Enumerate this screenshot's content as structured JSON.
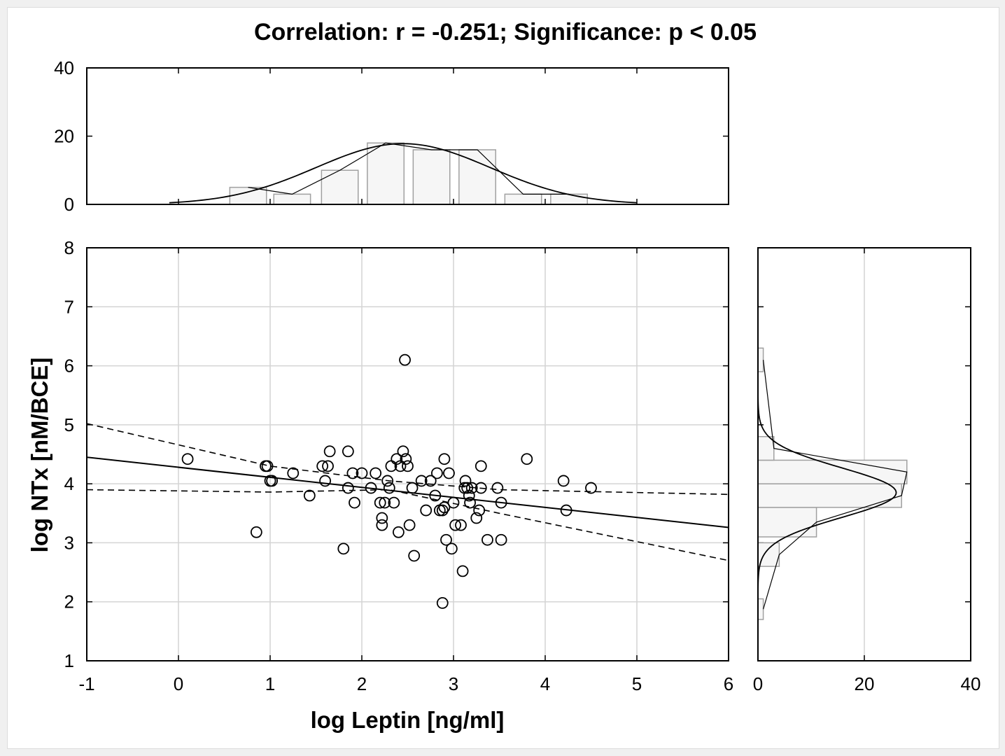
{
  "chart_data": {
    "type": "scatter",
    "title": "Correlation: r = -0.251; Significance: p < 0.05",
    "xlabel": "log Leptin [ng/ml]",
    "ylabel": "log NTx [nM/BCE]",
    "xlim": [
      -1,
      6
    ],
    "ylim": [
      1,
      8
    ],
    "x_ticks": [
      "-1",
      "0",
      "1",
      "2",
      "3",
      "4",
      "5",
      "6"
    ],
    "y_ticks": [
      "1",
      "2",
      "3",
      "4",
      "5",
      "6",
      "7",
      "8"
    ],
    "grid": true,
    "regression": {
      "intercept": 4.28,
      "slope": -0.17,
      "ci_upper": [
        [
          -1,
          5.02
        ],
        [
          1,
          4.3
        ],
        [
          2.3,
          4.05
        ],
        [
          3.5,
          3.9
        ],
        [
          6,
          3.82
        ]
      ],
      "ci_lower": [
        [
          -1,
          3.9
        ],
        [
          1,
          3.86
        ],
        [
          2.3,
          3.9
        ],
        [
          3.5,
          3.5
        ],
        [
          6,
          2.7
        ]
      ]
    },
    "points": [
      [
        0.1,
        4.42
      ],
      [
        0.85,
        3.18
      ],
      [
        0.95,
        4.3
      ],
      [
        0.97,
        4.3
      ],
      [
        1.0,
        4.05
      ],
      [
        1.02,
        4.05
      ],
      [
        1.25,
        4.18
      ],
      [
        1.43,
        3.8
      ],
      [
        1.57,
        4.3
      ],
      [
        1.6,
        4.05
      ],
      [
        1.63,
        4.3
      ],
      [
        1.65,
        4.55
      ],
      [
        1.8,
        2.9
      ],
      [
        1.85,
        3.93
      ],
      [
        1.85,
        4.55
      ],
      [
        1.9,
        4.18
      ],
      [
        1.92,
        3.68
      ],
      [
        2.0,
        4.18
      ],
      [
        2.1,
        3.93
      ],
      [
        2.15,
        4.18
      ],
      [
        2.2,
        3.68
      ],
      [
        2.22,
        3.42
      ],
      [
        2.22,
        3.3
      ],
      [
        2.25,
        3.68
      ],
      [
        2.28,
        4.05
      ],
      [
        2.3,
        3.93
      ],
      [
        2.32,
        4.3
      ],
      [
        2.35,
        3.68
      ],
      [
        2.38,
        4.42
      ],
      [
        2.4,
        3.18
      ],
      [
        2.42,
        4.3
      ],
      [
        2.45,
        4.55
      ],
      [
        2.47,
        6.1
      ],
      [
        2.48,
        4.42
      ],
      [
        2.5,
        4.3
      ],
      [
        2.52,
        3.3
      ],
      [
        2.55,
        3.93
      ],
      [
        2.57,
        2.78
      ],
      [
        2.65,
        4.05
      ],
      [
        2.7,
        3.55
      ],
      [
        2.75,
        4.05
      ],
      [
        2.8,
        3.8
      ],
      [
        2.82,
        4.18
      ],
      [
        2.85,
        3.55
      ],
      [
        2.88,
        3.55
      ],
      [
        2.88,
        1.98
      ],
      [
        2.9,
        4.42
      ],
      [
        2.9,
        3.6
      ],
      [
        2.92,
        3.05
      ],
      [
        2.95,
        4.18
      ],
      [
        2.98,
        2.9
      ],
      [
        3.0,
        3.68
      ],
      [
        3.02,
        3.3
      ],
      [
        3.08,
        3.3
      ],
      [
        3.1,
        2.52
      ],
      [
        3.12,
        3.93
      ],
      [
        3.13,
        4.05
      ],
      [
        3.15,
        3.93
      ],
      [
        3.17,
        3.8
      ],
      [
        3.18,
        3.68
      ],
      [
        3.2,
        3.93
      ],
      [
        3.25,
        3.42
      ],
      [
        3.28,
        3.55
      ],
      [
        3.3,
        3.93
      ],
      [
        3.3,
        4.3
      ],
      [
        3.37,
        3.05
      ],
      [
        3.48,
        3.93
      ],
      [
        3.52,
        3.68
      ],
      [
        3.52,
        3.05
      ],
      [
        3.8,
        4.42
      ],
      [
        4.2,
        4.05
      ],
      [
        4.23,
        3.55
      ],
      [
        4.5,
        3.93
      ]
    ],
    "top_histogram": {
      "ylim": [
        0,
        40
      ],
      "y_ticks": [
        "0",
        "20",
        "40"
      ],
      "bins": [
        {
          "x0": 0.56,
          "x1": 0.96,
          "count": 5
        },
        {
          "x0": 1.04,
          "x1": 1.44,
          "count": 3
        },
        {
          "x0": 1.56,
          "x1": 1.96,
          "count": 10
        },
        {
          "x0": 2.06,
          "x1": 2.46,
          "count": 18
        },
        {
          "x0": 2.56,
          "x1": 2.96,
          "count": 16
        },
        {
          "x0": 3.06,
          "x1": 3.46,
          "count": 16
        },
        {
          "x0": 3.56,
          "x1": 3.96,
          "count": 3
        },
        {
          "x0": 4.06,
          "x1": 4.46,
          "count": 3
        }
      ],
      "fit_curve": {
        "mean": 2.45,
        "sd": 0.95,
        "peak": 17.8,
        "x_from": -0.1,
        "x_to": 5.0
      }
    },
    "right_histogram": {
      "xlim": [
        0,
        40
      ],
      "x_ticks": [
        "0",
        "20",
        "40"
      ],
      "bins": [
        {
          "y0": 1.7,
          "y1": 2.05,
          "count": 1
        },
        {
          "y0": 2.6,
          "y1": 3.0,
          "count": 4
        },
        {
          "y0": 3.1,
          "y1": 3.6,
          "count": 11
        },
        {
          "y0": 3.6,
          "y1": 4.0,
          "count": 27
        },
        {
          "y0": 4.0,
          "y1": 4.4,
          "count": 28
        },
        {
          "y0": 4.4,
          "y1": 4.8,
          "count": 3
        },
        {
          "y0": 5.9,
          "y1": 6.3,
          "count": 1
        }
      ],
      "fit_curve": {
        "mean": 3.85,
        "sd": 0.42,
        "peak": 26,
        "y_from": 1.9,
        "y_to": 6.8
      }
    }
  }
}
